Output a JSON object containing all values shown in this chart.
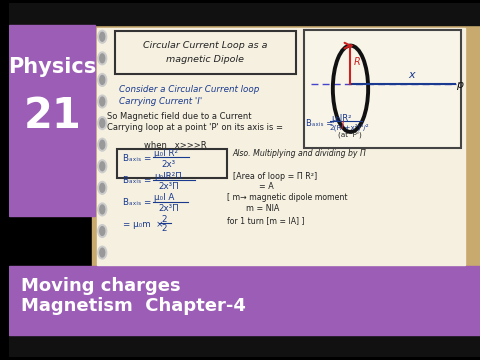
{
  "bg_color": "#c8a96e",
  "left_panel_color": "#9b5db5",
  "left_panel_text1": "Physics",
  "left_panel_text2": "21",
  "bottom_panel_color": "#9b5db5",
  "bottom_text1": "Moving charges",
  "bottom_text2": "Magnetism  Chapter-4",
  "notebook_bg": "#f5f0e0",
  "title_box_text1": "Circular Current Loop as a",
  "title_box_text2": "magnetic Dipole",
  "line1": "Consider a Circular Current loop",
  "line2": "Carrying Current 'I'",
  "line3": "So Magnetic field due to a Current",
  "line4": "Carrying loop at a point 'P' on its axis is =",
  "also_text": "Also. Multiplying and dividing by Π",
  "area_text1": "[Area of loop = Π R²]",
  "area_text2": "= A",
  "moment_text1": "[ m→ magnetic dipole moment",
  "moment_text2": "m = NIA",
  "moment_text3": "for 1 turn [m = IA] ]",
  "text_color_blue": "#1a3a8f",
  "text_color_dark": "#222222",
  "text_color_red": "#cc2222"
}
